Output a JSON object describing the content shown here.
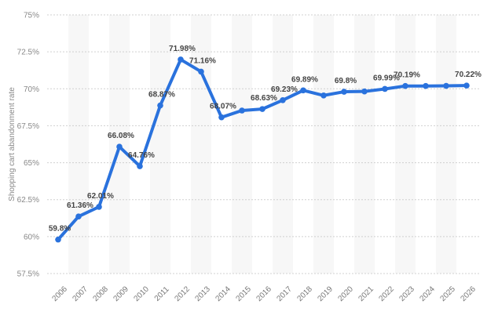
{
  "chart_data": {
    "type": "line",
    "title": "",
    "xlabel": "",
    "ylabel": "Shopping cart abandonment rate",
    "ylim": [
      57.5,
      75
    ],
    "yticks": [
      "57.5%",
      "60%",
      "62.5%",
      "65%",
      "67.5%",
      "70%",
      "72.5%",
      "75%"
    ],
    "ytick_values": [
      57.5,
      60,
      62.5,
      65,
      67.5,
      70,
      72.5,
      75
    ],
    "grid": true,
    "categories": [
      "2006",
      "2007",
      "2008",
      "2009",
      "2010",
      "2011",
      "2012",
      "2013",
      "2014",
      "2015",
      "2016",
      "2017",
      "2018",
      "2019",
      "2020",
      "2021",
      "2022",
      "2023",
      "2024",
      "2025",
      "2026"
    ],
    "values": [
      59.8,
      61.36,
      62.01,
      66.08,
      64.76,
      68.87,
      71.98,
      71.16,
      68.07,
      68.53,
      68.63,
      69.23,
      69.89,
      69.55,
      69.8,
      69.82,
      69.99,
      70.19,
      70.19,
      70.2,
      70.22
    ],
    "data_labels": [
      "59.8%",
      "61.36%",
      "62.01%",
      "66.08%",
      "64.76%",
      "68.87%",
      "71.98%",
      "71.16%",
      "68.07%",
      "",
      "68.63%",
      "69.23%",
      "69.89%",
      "",
      "69.8%",
      "",
      "69.99%",
      "70.19%",
      "",
      "",
      "70.22%"
    ],
    "line_color": "#2a72dd",
    "band_color": "#f7f7f7"
  }
}
